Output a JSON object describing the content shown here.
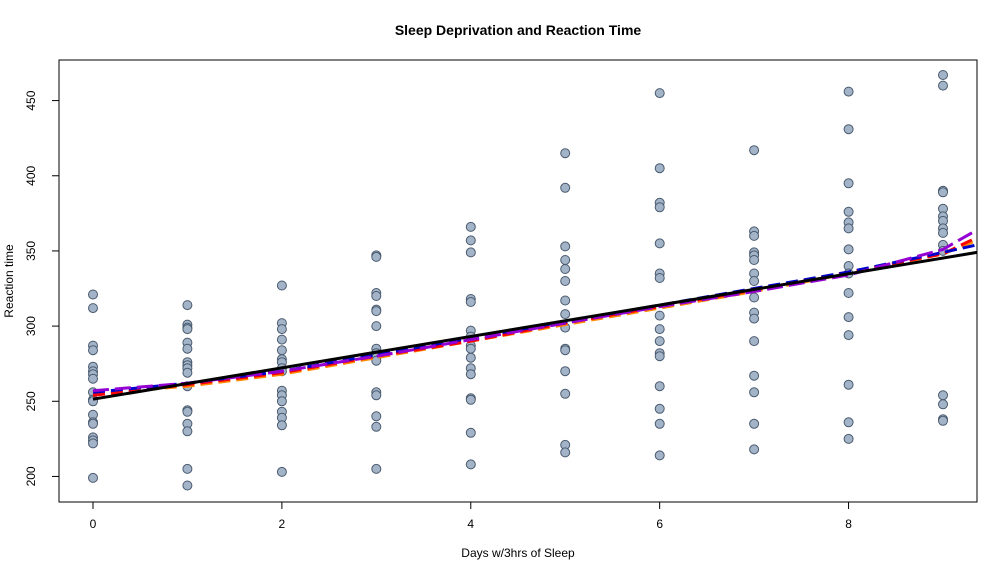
{
  "chart_data": {
    "type": "scatter",
    "title": "Sleep Deprivation and Reaction Time",
    "xlabel": "Days w/3hrs of Sleep",
    "ylabel": "Reaction time",
    "xlim": [
      -0.36,
      9.36
    ],
    "ylim": [
      183,
      477
    ],
    "xticks": [
      0,
      2,
      4,
      6,
      8
    ],
    "yticks": [
      200,
      250,
      300,
      350,
      400,
      450
    ],
    "grid": false,
    "points": {
      "color": "#a3b4c8",
      "edge_color": "#4a5a6e",
      "data": [
        [
          0,
          321
        ],
        [
          0,
          312
        ],
        [
          0,
          287
        ],
        [
          0,
          284
        ],
        [
          0,
          273
        ],
        [
          0,
          270
        ],
        [
          0,
          268
        ],
        [
          0,
          265
        ],
        [
          0,
          256
        ],
        [
          0,
          251
        ],
        [
          0,
          250
        ],
        [
          0,
          241
        ],
        [
          0,
          236
        ],
        [
          0,
          235
        ],
        [
          0,
          226
        ],
        [
          0,
          224
        ],
        [
          0,
          222
        ],
        [
          0,
          199
        ],
        [
          1,
          314
        ],
        [
          1,
          301
        ],
        [
          1,
          299
        ],
        [
          1,
          298
        ],
        [
          1,
          289
        ],
        [
          1,
          285
        ],
        [
          1,
          276
        ],
        [
          1,
          274
        ],
        [
          1,
          272
        ],
        [
          1,
          269
        ],
        [
          1,
          260
        ],
        [
          1,
          244
        ],
        [
          1,
          243
        ],
        [
          1,
          235
        ],
        [
          1,
          230
        ],
        [
          1,
          205
        ],
        [
          1,
          194
        ],
        [
          2,
          327
        ],
        [
          2,
          302
        ],
        [
          2,
          298
        ],
        [
          2,
          291
        ],
        [
          2,
          284
        ],
        [
          2,
          278
        ],
        [
          2,
          276
        ],
        [
          2,
          272
        ],
        [
          2,
          270
        ],
        [
          2,
          257
        ],
        [
          2,
          254
        ],
        [
          2,
          250
        ],
        [
          2,
          243
        ],
        [
          2,
          239
        ],
        [
          2,
          234
        ],
        [
          2,
          203
        ],
        [
          3,
          347
        ],
        [
          3,
          346
        ],
        [
          3,
          322
        ],
        [
          3,
          320
        ],
        [
          3,
          311
        ],
        [
          3,
          310
        ],
        [
          3,
          300
        ],
        [
          3,
          285
        ],
        [
          3,
          282
        ],
        [
          3,
          279
        ],
        [
          3,
          277
        ],
        [
          3,
          256
        ],
        [
          3,
          254
        ],
        [
          3,
          240
        ],
        [
          3,
          233
        ],
        [
          3,
          205
        ],
        [
          4,
          366
        ],
        [
          4,
          357
        ],
        [
          4,
          349
        ],
        [
          4,
          318
        ],
        [
          4,
          316
        ],
        [
          4,
          297
        ],
        [
          4,
          293
        ],
        [
          4,
          287
        ],
        [
          4,
          285
        ],
        [
          4,
          279
        ],
        [
          4,
          272
        ],
        [
          4,
          268
        ],
        [
          4,
          252
        ],
        [
          4,
          251
        ],
        [
          4,
          229
        ],
        [
          4,
          208
        ],
        [
          5,
          415
        ],
        [
          5,
          392
        ],
        [
          5,
          353
        ],
        [
          5,
          344
        ],
        [
          5,
          338
        ],
        [
          5,
          330
        ],
        [
          5,
          317
        ],
        [
          5,
          308
        ],
        [
          5,
          299
        ],
        [
          5,
          285
        ],
        [
          5,
          284
        ],
        [
          5,
          270
        ],
        [
          5,
          255
        ],
        [
          5,
          221
        ],
        [
          5,
          216
        ],
        [
          6,
          455
        ],
        [
          6,
          405
        ],
        [
          6,
          382
        ],
        [
          6,
          379
        ],
        [
          6,
          355
        ],
        [
          6,
          335
        ],
        [
          6,
          332
        ],
        [
          6,
          307
        ],
        [
          6,
          298
        ],
        [
          6,
          290
        ],
        [
          6,
          282
        ],
        [
          6,
          280
        ],
        [
          6,
          260
        ],
        [
          6,
          245
        ],
        [
          6,
          235
        ],
        [
          6,
          214
        ],
        [
          7,
          417
        ],
        [
          7,
          363
        ],
        [
          7,
          360
        ],
        [
          7,
          349
        ],
        [
          7,
          347
        ],
        [
          7,
          344
        ],
        [
          7,
          335
        ],
        [
          7,
          330
        ],
        [
          7,
          319
        ],
        [
          7,
          309
        ],
        [
          7,
          305
        ],
        [
          7,
          290
        ],
        [
          7,
          267
        ],
        [
          7,
          256
        ],
        [
          7,
          235
        ],
        [
          7,
          218
        ],
        [
          8,
          456
        ],
        [
          8,
          431
        ],
        [
          8,
          395
        ],
        [
          8,
          376
        ],
        [
          8,
          369
        ],
        [
          8,
          365
        ],
        [
          8,
          351
        ],
        [
          8,
          340
        ],
        [
          8,
          335
        ],
        [
          8,
          322
        ],
        [
          8,
          306
        ],
        [
          8,
          294
        ],
        [
          8,
          261
        ],
        [
          8,
          236
        ],
        [
          8,
          225
        ],
        [
          9,
          467
        ],
        [
          9,
          460
        ],
        [
          9,
          390
        ],
        [
          9,
          389
        ],
        [
          9,
          378
        ],
        [
          9,
          373
        ],
        [
          9,
          370
        ],
        [
          9,
          365
        ],
        [
          9,
          362
        ],
        [
          9,
          354
        ],
        [
          9,
          350
        ],
        [
          9,
          254
        ],
        [
          9,
          248
        ],
        [
          9,
          238
        ],
        [
          9,
          237
        ]
      ]
    },
    "series": [
      {
        "color": "#000000",
        "dash": "solid",
        "x": [
          0,
          9.36
        ],
        "y": [
          251.4,
          349.0
        ]
      },
      {
        "color": "#ff8c00",
        "dash": "dashed",
        "x": [
          0,
          1,
          2,
          3,
          4,
          5,
          6,
          7,
          8,
          9,
          9.36
        ],
        "y": [
          255,
          260,
          268,
          279,
          290,
          301,
          312,
          323,
          335,
          348,
          357
        ]
      },
      {
        "color": "#ff0000",
        "dash": "dashed",
        "x": [
          0,
          1,
          2,
          3,
          4,
          5,
          6,
          7,
          8,
          9,
          9.36
        ],
        "y": [
          254,
          261,
          269,
          280,
          290,
          302,
          313,
          324,
          336,
          348,
          359
        ]
      },
      {
        "color": "#0000cd",
        "dash": "dashed",
        "x": [
          0,
          1,
          2,
          3,
          4,
          5,
          6,
          7,
          8,
          9,
          9.36
        ],
        "y": [
          256,
          262,
          270,
          281,
          292,
          303,
          314,
          325,
          336,
          349,
          354
        ]
      },
      {
        "color": "#9400d3",
        "dash": "longdash",
        "x": [
          0,
          1,
          2,
          3,
          4,
          5,
          6,
          7,
          8,
          9,
          9.36
        ],
        "y": [
          257,
          262,
          270,
          280,
          291,
          302,
          313,
          323,
          334,
          351,
          364
        ]
      }
    ]
  }
}
